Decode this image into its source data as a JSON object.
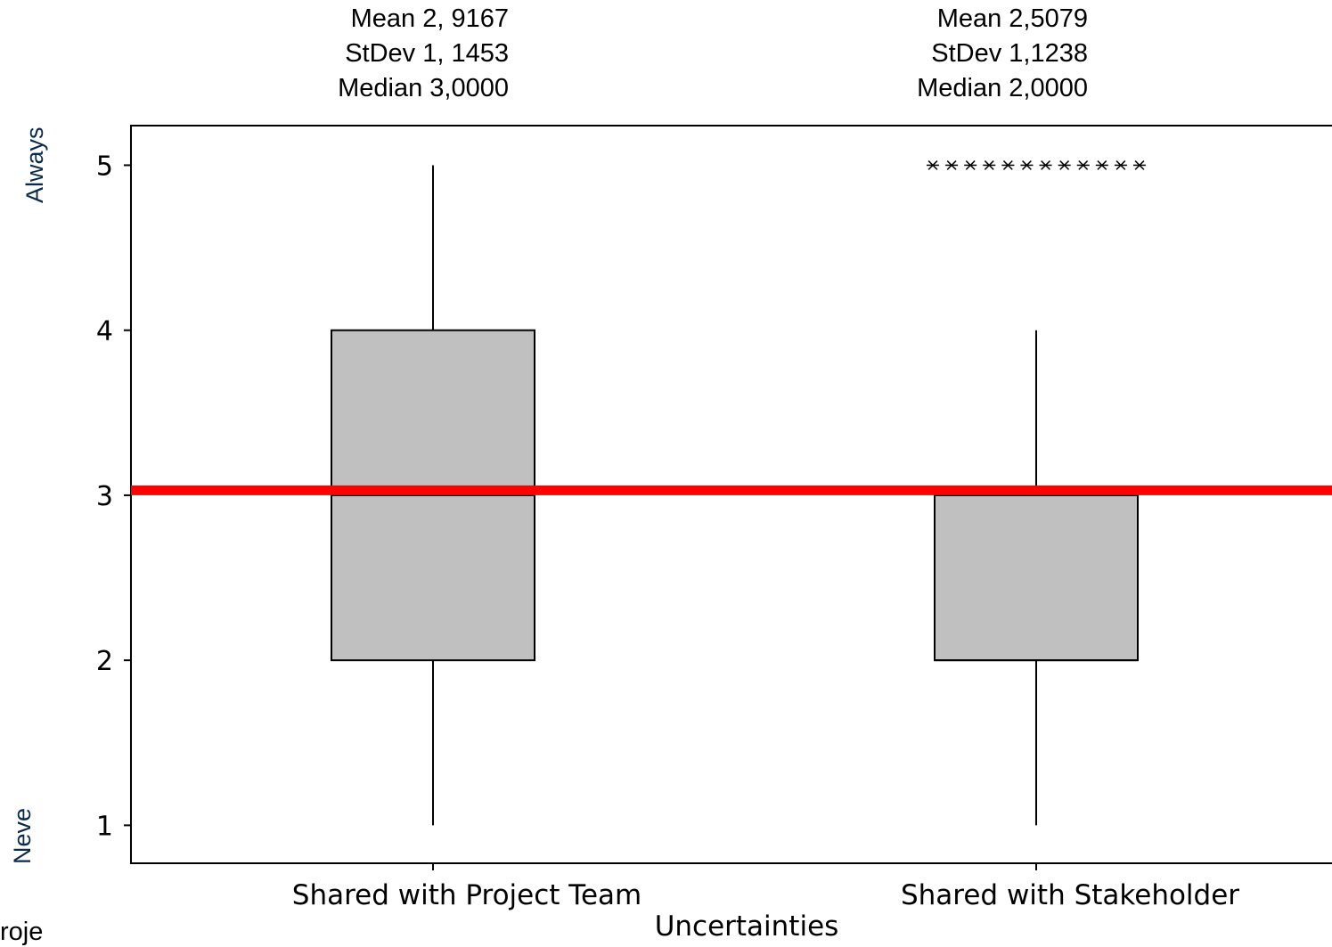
{
  "stats_boxes": [
    {
      "mean": "Mean 2, 9167",
      "stdev": "StDev 1, 1453",
      "median": "Median 3,0000"
    },
    {
      "mean": "Mean 2,5079",
      "stdev": "StDev 1,1238",
      "median": "Median 2,0000"
    }
  ],
  "side_labels": {
    "top": "Always",
    "bottom": "Neve"
  },
  "cut_text": "roje",
  "colors": {
    "box_fill": "#c0c0c0",
    "reference_line": "#ff0000",
    "axis": "#000000",
    "side_label": "#0a2a4a"
  },
  "chart_data": {
    "type": "boxplot",
    "title": "",
    "xlabel": "Uncertainties",
    "ylabel": "",
    "ylim": [
      0.77,
      5.24
    ],
    "yticks": [
      1,
      2,
      3,
      4,
      5
    ],
    "ytick_labels": [
      "1",
      "2",
      "3",
      "4",
      "5"
    ],
    "grid": false,
    "reference_line": 3.03,
    "categories": [
      "Shared with Project Team",
      "Shared with Stakeholder"
    ],
    "boxes": [
      {
        "category": "Shared with Project Team",
        "whisker_low": 1,
        "q1": 2,
        "median": 3,
        "q3": 4,
        "whisker_high": 5,
        "outliers": []
      },
      {
        "category": "Shared with Stakeholder",
        "whisker_low": 1,
        "q1": 2,
        "median": 2,
        "q3": 3,
        "whisker_high": 4,
        "outliers": [
          5,
          5,
          5,
          5,
          5,
          5,
          5,
          5,
          5,
          5,
          5,
          5
        ]
      }
    ]
  }
}
